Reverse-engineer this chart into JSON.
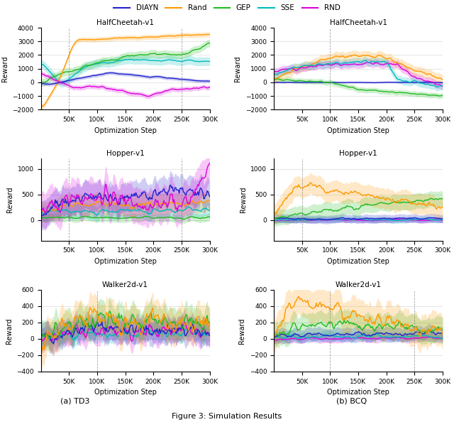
{
  "legend_labels": [
    "DIAYN",
    "Rand",
    "GEP",
    "SSE",
    "RND"
  ],
  "colors": {
    "DIAYN": "#2222cc",
    "Rand": "#ff9900",
    "GEP": "#22bb22",
    "SSE": "#00bbbb",
    "RND": "#dd00dd"
  },
  "xlabel": "Optimization Step",
  "ylabel": "Reward",
  "caption_left": "(a) TD3",
  "caption_right": "(b) BCQ",
  "figure_title": "Figure 3: Simulation Results",
  "x_max": 300000,
  "xtick_positions": [
    50000,
    100000,
    150000,
    200000,
    250000,
    300000
  ],
  "ylims": {
    "halfcheetah": [
      -2000,
      4000
    ],
    "hopper": [
      -400,
      1200
    ],
    "walker": [
      -400,
      600
    ]
  },
  "dashed_lines": {
    "td3_halfcheetah": [
      50000,
      250000
    ],
    "bcq_halfcheetah": [
      100000
    ],
    "td3_hopper": [
      50000,
      250000
    ],
    "bcq_hopper": [
      50000
    ],
    "td3_walker": [
      100000,
      300000
    ],
    "bcq_walker": [
      100000,
      250000
    ]
  }
}
